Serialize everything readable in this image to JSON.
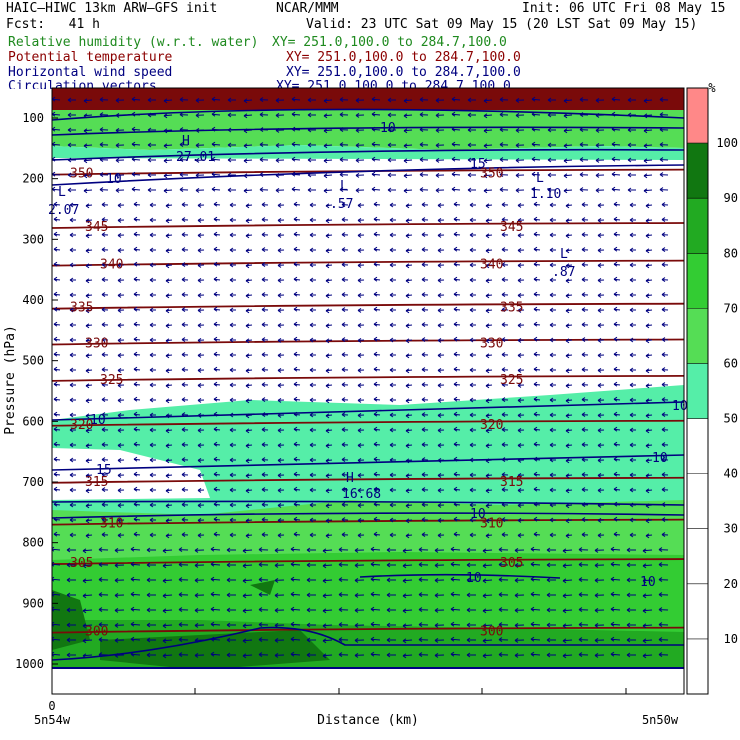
{
  "header": {
    "model": "HAIC—HIWC 13km ARW—GFS init",
    "center": "NCAR/MMM",
    "init": "Init: 06 UTC Fri 08 May 15",
    "fcst": "Fcst:   41 h",
    "valid": "Valid: 23 UTC Sat 09 May 15 (20 LST Sat 09 May 15)",
    "fields": [
      {
        "name": "Relative humidity (w.r.t. water)",
        "xy": "XY= 251.0,100.0 to 284.7,100.0",
        "color": "#1f8a1f"
      },
      {
        "name": "Potential temperature",
        "xy": "XY= 251.0,100.0 to 284.7,100.0",
        "color": "#8b0000"
      },
      {
        "name": "Horizontal wind speed",
        "xy": "XY= 251.0,100.0 to 284.7,100.0",
        "color": "#000080"
      },
      {
        "name": "Circulation vectors",
        "xy": "XY= 251.0,100.0 to 284.7,100.0",
        "color": "#000080"
      }
    ]
  },
  "chart_data": {
    "type": "heatmap",
    "ylabel": "Pressure (hPa)",
    "xlabel": "Distance (km)",
    "yticks": [
      100,
      200,
      300,
      400,
      500,
      600,
      700,
      800,
      900,
      1000
    ],
    "x_tick_label": "0",
    "x_left_label": "5n54w",
    "x_right_label": "5n50w",
    "colorbar": {
      "unit": "%",
      "ticks": [
        10,
        20,
        30,
        40,
        50,
        60,
        70,
        80,
        90,
        100
      ],
      "colors": [
        "#ffffff",
        "#ffffff",
        "#ffffff",
        "#ffffff",
        "#ffffff",
        "#55eea8",
        "#55dd55",
        "#33cc33",
        "#22aa22",
        "#117711",
        "#ff8888"
      ]
    },
    "theta_isentropes": [
      {
        "value": 350,
        "p": 190
      },
      {
        "value": 345,
        "p": 278
      },
      {
        "value": 340,
        "p": 340
      },
      {
        "value": 335,
        "p": 411
      },
      {
        "value": 330,
        "p": 470
      },
      {
        "value": 325,
        "p": 530
      },
      {
        "value": 320,
        "p": 604
      },
      {
        "value": 315,
        "p": 698
      },
      {
        "value": 310,
        "p": 767
      },
      {
        "value": 305,
        "p": 832
      },
      {
        "value": 300,
        "p": 945
      }
    ],
    "wind_labels": [
      "10",
      "10",
      "15",
      "10",
      "15",
      "10",
      "10",
      "10",
      "10",
      "10"
    ],
    "extrema": [
      {
        "type": "L",
        "value": "2.07"
      },
      {
        "type": "L",
        "value": ".57"
      },
      {
        "type": "L",
        "value": "1.10"
      },
      {
        "type": "L",
        "value": ".87"
      },
      {
        "type": "H",
        "value": "16.68"
      },
      {
        "type": "H",
        "value": "27.01"
      }
    ]
  }
}
